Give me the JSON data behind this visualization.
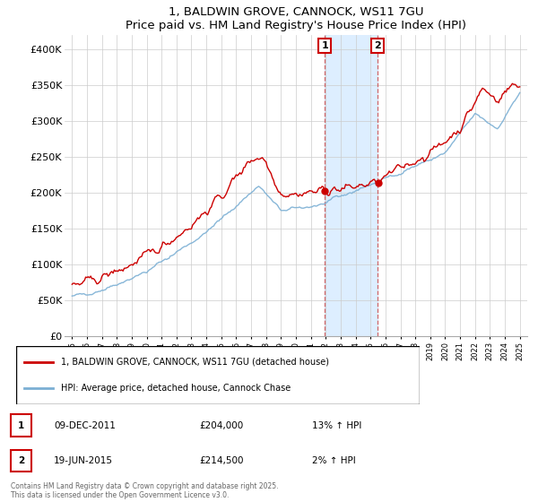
{
  "title": "1, BALDWIN GROVE, CANNOCK, WS11 7GU",
  "subtitle": "Price paid vs. HM Land Registry's House Price Index (HPI)",
  "legend_label_red": "1, BALDWIN GROVE, CANNOCK, WS11 7GU (detached house)",
  "legend_label_blue": "HPI: Average price, detached house, Cannock Chase",
  "annotation1_date": "09-DEC-2011",
  "annotation1_price": "£204,000",
  "annotation1_hpi": "13% ↑ HPI",
  "annotation2_date": "19-JUN-2015",
  "annotation2_price": "£214,500",
  "annotation2_hpi": "2% ↑ HPI",
  "footnote": "Contains HM Land Registry data © Crown copyright and database right 2025.\nThis data is licensed under the Open Government Licence v3.0.",
  "red_color": "#cc0000",
  "blue_color": "#7bafd4",
  "shaded_region_color": "#ddeeff",
  "marker1_x_year": 2011.93,
  "marker2_x_year": 2015.47,
  "ylim_min": 0,
  "ylim_max": 420000,
  "xlim_min": 1994.5,
  "xlim_max": 2025.5
}
